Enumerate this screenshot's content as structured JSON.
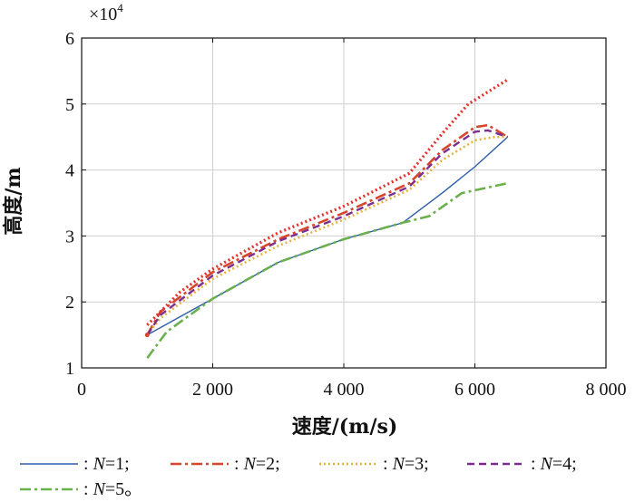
{
  "chart_data": {
    "type": "line",
    "xlabel": "速度/(m/s)",
    "ylabel": "高度/m",
    "xlim": [
      0,
      8000
    ],
    "ylim": [
      1,
      6
    ],
    "y_multiplier": "×10",
    "y_multiplier_exponent": "4",
    "x_ticks": [
      0,
      2000,
      4000,
      6000,
      8000
    ],
    "x_tick_labels": [
      "0",
      "2 000",
      "4 000",
      "6 000",
      "8 000"
    ],
    "y_ticks": [
      1,
      2,
      3,
      4,
      5,
      6
    ],
    "y_tick_labels": [
      "1",
      "2",
      "3",
      "4",
      "5",
      "6"
    ],
    "grid": true,
    "legend_position": "bottom",
    "series": [
      {
        "name": ": N=1;",
        "legend_prefix": ": ",
        "legend_var": "N",
        "legend_suffix": "=1;",
        "color": "#2f5ea8",
        "dash": "",
        "width": 1.4,
        "x": [
          1000,
          2000,
          3000,
          4000,
          4900,
          5500,
          6000,
          6500
        ],
        "y": [
          1.5,
          2.05,
          2.6,
          2.95,
          3.2,
          3.65,
          4.05,
          4.5
        ]
      },
      {
        "name": ": N=2;",
        "legend_prefix": ": ",
        "legend_var": "N",
        "legend_suffix": "=2;",
        "color": "#d5462b",
        "dash": "12 4 3 4",
        "width": 2.6,
        "x": [
          1000,
          1200,
          2000,
          3000,
          4000,
          5000,
          5500,
          6000,
          6200,
          6500
        ],
        "y": [
          1.5,
          1.85,
          2.45,
          2.95,
          3.35,
          3.8,
          4.3,
          4.65,
          4.68,
          4.5
        ]
      },
      {
        "name": ": N=3;",
        "legend_prefix": ": ",
        "legend_var": "N",
        "legend_suffix": "=3;",
        "color": "#e6b23c",
        "dash": "2 3",
        "width": 2.6,
        "x": [
          1000,
          1200,
          2000,
          3000,
          4000,
          5000,
          5500,
          6000,
          6300,
          6500
        ],
        "y": [
          1.5,
          1.75,
          2.35,
          2.85,
          3.25,
          3.7,
          4.15,
          4.45,
          4.5,
          4.5
        ]
      },
      {
        "name": ": N=4;",
        "legend_prefix": ": ",
        "legend_var": "N",
        "legend_suffix": "=4;",
        "color": "#7a2f8f",
        "dash": "8 5",
        "width": 2.4,
        "x": [
          1000,
          1200,
          2000,
          3000,
          4000,
          5000,
          5500,
          6000,
          6200,
          6500
        ],
        "y": [
          1.5,
          1.8,
          2.4,
          2.92,
          3.3,
          3.75,
          4.25,
          4.58,
          4.6,
          4.5
        ]
      },
      {
        "name": ": N=5。",
        "legend_prefix": ": ",
        "legend_var": "N",
        "legend_suffix": "=5。",
        "color": "#6ab04c",
        "dash": "12 4 3 4",
        "width": 2.6,
        "x": [
          1000,
          1300,
          2000,
          3000,
          4000,
          4900,
          5300,
          5800,
          6500
        ],
        "y": [
          1.15,
          1.55,
          2.05,
          2.6,
          2.95,
          3.2,
          3.3,
          3.65,
          3.8
        ]
      },
      {
        "name": "",
        "color": "#e8302a",
        "dash": "2 3",
        "width": 3.2,
        "x": [
          1000,
          1500,
          2000,
          3000,
          4000,
          5000,
          5500,
          5900,
          6500
        ],
        "y": [
          1.65,
          2.15,
          2.5,
          3.05,
          3.45,
          3.95,
          4.55,
          5.0,
          5.37
        ]
      }
    ]
  }
}
